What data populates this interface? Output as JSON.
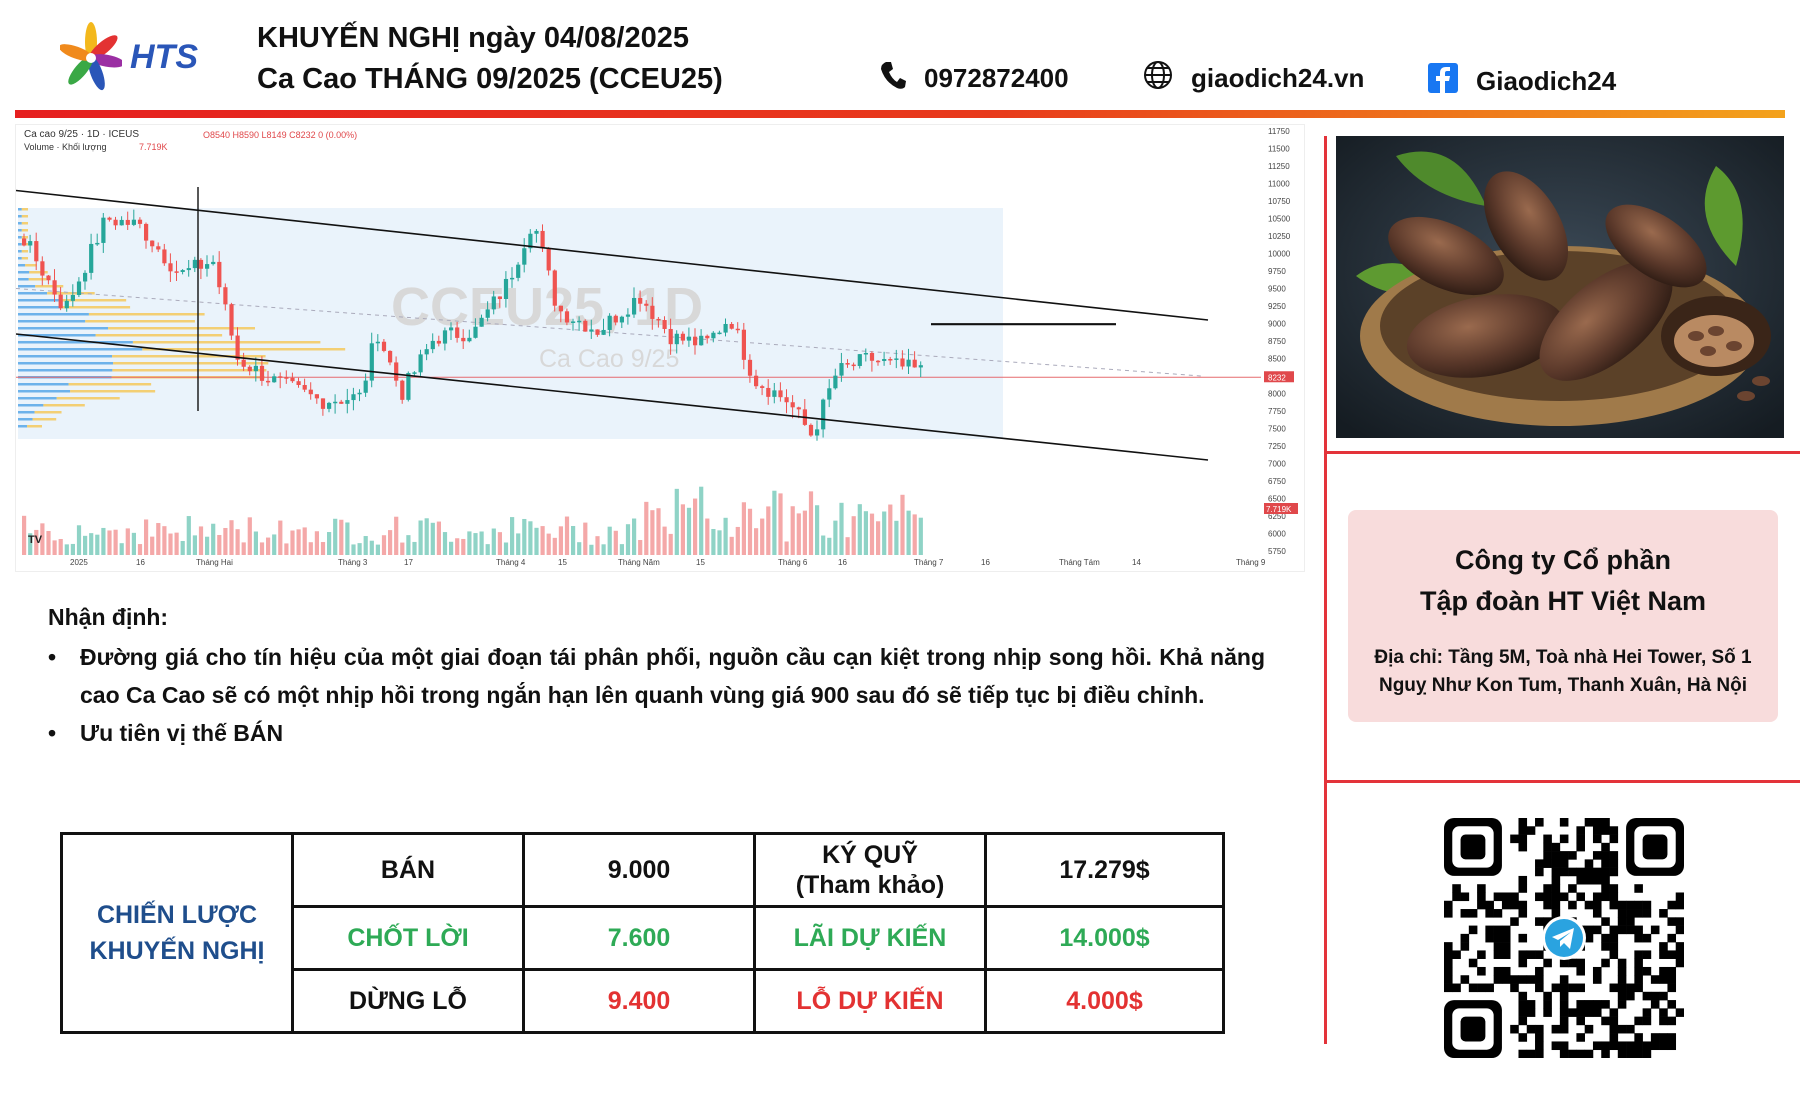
{
  "header": {
    "logo_text": "HTS",
    "title_line1": "KHUYẾN NGHỊ ngày 04/08/2025",
    "title_line2": "Ca Cao THÁNG 09/2025 (CCEU25)",
    "phone": "0972872400",
    "website": "giaodich24.vn",
    "facebook": "Giaodich24"
  },
  "chart": {
    "symbol_line": "Ca cao 9/25 · 1D · ICEUS",
    "ohlc": "O8540 H8590 L8149 C8232 0 (0.00%)",
    "volume_label": "Volume · Khối lượng",
    "volume_value": "7.719K",
    "watermark_big": "CCEU25, 1D",
    "watermark_small": "Ca Cao 9/25",
    "last_price_tag": "8232",
    "last_volume_tag": "7.719K",
    "price_ticks": [
      "11750",
      "11500",
      "11250",
      "11000",
      "10750",
      "10500",
      "10250",
      "10000",
      "9750",
      "9500",
      "9250",
      "9000",
      "8750",
      "8500",
      "8250",
      "8000",
      "7750",
      "7500",
      "7250",
      "7000",
      "6750",
      "6500",
      "6250",
      "6000",
      "5750"
    ],
    "time_ticks": [
      "2025",
      "16",
      "Tháng Hai",
      "Tháng 3",
      "17",
      "Tháng 4",
      "15",
      "Tháng Năm",
      "15",
      "Tháng 6",
      "16",
      "Tháng 7",
      "16",
      "Tháng Tám",
      "14",
      "Tháng 9"
    ],
    "colors": {
      "up": "#26a69a",
      "down": "#ef5350",
      "vol_up": "#8fd3c6",
      "vol_down": "#f4a8a8",
      "profile_blue": "#57a6e6",
      "profile_yellow": "#f5c85c"
    }
  },
  "analysis": {
    "heading": "Nhận định:",
    "bullets": [
      "Đường giá cho tín hiệu của một giai đoạn tái phân phối, nguồn cầu cạn kiệt trong nhịp song hồi. Khả năng cao Ca Cao sẽ có một nhịp hồi trong ngắn hạn lên quanh vùng giá 900 sau đó sẽ tiếp tục bị điều chỉnh.",
      "Ưu tiên vị thế BÁN"
    ]
  },
  "strategy": {
    "label_line1": "CHIẾN LƯỢC",
    "label_line2": "KHUYẾN NGHỊ",
    "rows": [
      {
        "c1": "BÁN",
        "c2": "9.000",
        "c3": "KÝ QUỸ",
        "c3b": "(Tham khảo)",
        "c4": "17.279$"
      },
      {
        "c1": "CHỐT LỜI",
        "c2": "7.600",
        "c3": "LÃI DỰ KIẾN",
        "c4": "14.000$"
      },
      {
        "c1": "DỪNG LỖ",
        "c2": "9.400",
        "c3": "LỖ DỰ KIẾN",
        "c4": "4.000$"
      }
    ]
  },
  "company": {
    "name_line1": "Công ty Cổ phần",
    "name_line2": "Tập đoàn HT Việt Nam",
    "address_line1": "Địa chỉ: Tầng 5M, Toà nhà Hei Tower, Số 1",
    "address_line2": "Nguỵ Như Kon Tum, Thanh Xuân, Hà Nội"
  },
  "icons": [
    "hts-logo-icon",
    "phone-icon",
    "globe-icon",
    "facebook-icon",
    "telegram-icon",
    "qr-code-icon",
    "cocoa-photo"
  ]
}
